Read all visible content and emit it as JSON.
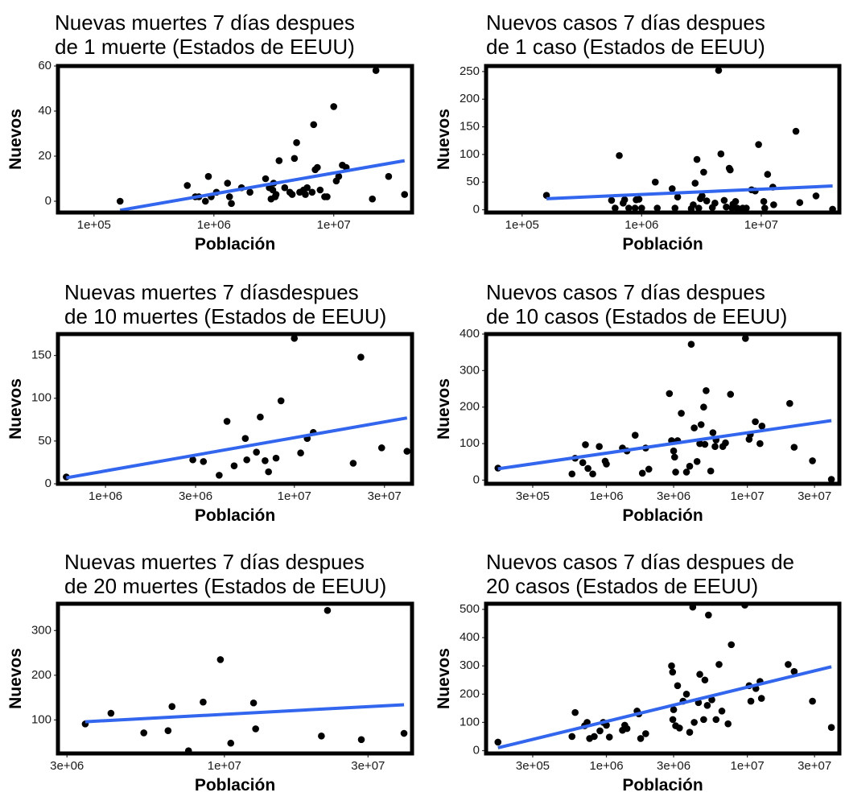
{
  "chart_data": [
    {
      "type": "scatter",
      "title": [
        "Nuevas muertes 7 días despues",
        "de 1 muerte (Estados de EEUU)"
      ],
      "xlabel": "Población",
      "ylabel": "Nuevos",
      "xscale": "log",
      "xlim": [
        50000,
        45000000
      ],
      "ylim": [
        -5,
        60
      ],
      "xticks": [
        {
          "value": 100000,
          "label": "1e+05"
        },
        {
          "value": 1000000,
          "label": "1e+06"
        },
        {
          "value": 10000000,
          "label": "1e+07"
        }
      ],
      "yticks": [
        {
          "value": 0,
          "label": "0"
        },
        {
          "value": 20,
          "label": "20"
        },
        {
          "value": 40,
          "label": "40"
        },
        {
          "value": 60,
          "label": "60"
        }
      ],
      "points": [
        [
          165000,
          0
        ],
        [
          600000,
          7
        ],
        [
          700000,
          2
        ],
        [
          750000,
          2
        ],
        [
          850000,
          0
        ],
        [
          900000,
          11
        ],
        [
          950000,
          2
        ],
        [
          1050000,
          4
        ],
        [
          1300000,
          8
        ],
        [
          1350000,
          2
        ],
        [
          1400000,
          -1
        ],
        [
          1700000,
          6
        ],
        [
          2000000,
          4
        ],
        [
          2700000,
          10
        ],
        [
          2900000,
          6
        ],
        [
          3000000,
          1
        ],
        [
          3100000,
          5
        ],
        [
          3150000,
          8
        ],
        [
          3250000,
          2
        ],
        [
          3300000,
          3
        ],
        [
          3500000,
          18
        ],
        [
          3900000,
          6
        ],
        [
          4300000,
          4
        ],
        [
          4500000,
          3
        ],
        [
          4700000,
          19
        ],
        [
          4900000,
          26
        ],
        [
          5200000,
          4
        ],
        [
          5600000,
          5
        ],
        [
          5800000,
          3
        ],
        [
          6000000,
          6
        ],
        [
          6600000,
          4
        ],
        [
          6800000,
          34
        ],
        [
          7000000,
          14
        ],
        [
          7300000,
          15
        ],
        [
          7700000,
          5
        ],
        [
          8400000,
          2
        ],
        [
          8800000,
          2
        ],
        [
          10000000,
          42
        ],
        [
          10500000,
          9
        ],
        [
          11000000,
          11
        ],
        [
          11800000,
          16
        ],
        [
          12700000,
          15
        ],
        [
          21000000,
          1
        ],
        [
          22500000,
          58
        ],
        [
          28700000,
          11
        ],
        [
          39000000,
          3
        ]
      ],
      "fit": [
        [
          165000,
          -4
        ],
        [
          39000000,
          18
        ]
      ],
      "line_color": "#3366ee"
    },
    {
      "type": "scatter",
      "title": [
        "Nuevos casos 7 días despues",
        "de 1 caso (Estados de EEUU)"
      ],
      "xlabel": "Población",
      "ylabel": "Nuevos",
      "xscale": "log",
      "xlim": [
        50000,
        45000000
      ],
      "ylim": [
        -5,
        260
      ],
      "xticks": [
        {
          "value": 100000,
          "label": "1e+05"
        },
        {
          "value": 1000000,
          "label": "1e+06"
        },
        {
          "value": 10000000,
          "label": "1e+07"
        }
      ],
      "yticks": [
        {
          "value": 0,
          "label": "0"
        },
        {
          "value": 50,
          "label": "50"
        },
        {
          "value": 100,
          "label": "100"
        },
        {
          "value": 150,
          "label": "150"
        },
        {
          "value": 200,
          "label": "200"
        },
        {
          "value": 250,
          "label": "250"
        }
      ],
      "points": [
        [
          160000,
          26
        ],
        [
          560000,
          17
        ],
        [
          600000,
          3
        ],
        [
          650000,
          98
        ],
        [
          700000,
          12
        ],
        [
          720000,
          18
        ],
        [
          780000,
          3
        ],
        [
          880000,
          3
        ],
        [
          900000,
          18
        ],
        [
          950000,
          19
        ],
        [
          1000000,
          3
        ],
        [
          1300000,
          50
        ],
        [
          1350000,
          3
        ],
        [
          1800000,
          38
        ],
        [
          1900000,
          3
        ],
        [
          2000000,
          23
        ],
        [
          2600000,
          2
        ],
        [
          2700000,
          9
        ],
        [
          2800000,
          48
        ],
        [
          2900000,
          91
        ],
        [
          3000000,
          3
        ],
        [
          3100000,
          20
        ],
        [
          3200000,
          25
        ],
        [
          3300000,
          68
        ],
        [
          3500000,
          16
        ],
        [
          3900000,
          4
        ],
        [
          4100000,
          12
        ],
        [
          4400000,
          252
        ],
        [
          4600000,
          101
        ],
        [
          4900000,
          17
        ],
        [
          5100000,
          5
        ],
        [
          5400000,
          75
        ],
        [
          5500000,
          72
        ],
        [
          5700000,
          3
        ],
        [
          5800000,
          10
        ],
        [
          6100000,
          15
        ],
        [
          6300000,
          3
        ],
        [
          6500000,
          1
        ],
        [
          6700000,
          0
        ],
        [
          7000000,
          3
        ],
        [
          7500000,
          3
        ],
        [
          8300000,
          36
        ],
        [
          8900000,
          34
        ],
        [
          9500000,
          118
        ],
        [
          10500000,
          15
        ],
        [
          10700000,
          3
        ],
        [
          11300000,
          64
        ],
        [
          12500000,
          41
        ],
        [
          12700000,
          9
        ],
        [
          19500000,
          142
        ],
        [
          21000000,
          13
        ],
        [
          28700000,
          25
        ],
        [
          39500000,
          1
        ]
      ],
      "fit": [
        [
          160000,
          20
        ],
        [
          39500000,
          43
        ]
      ],
      "line_color": "#3366ee"
    },
    {
      "type": "scatter",
      "title": [
        "Nuevas muertes 7 díasdespues",
        "de 10 muertes (Estados de EEUU)"
      ],
      "xlabel": "Población",
      "ylabel": "Nuevos",
      "xscale": "log",
      "xlim": [
        560000,
        42000000
      ],
      "ylim": [
        0,
        175
      ],
      "xticks": [
        {
          "value": 1000000,
          "label": "1e+06"
        },
        {
          "value": 3000000,
          "label": "3e+06"
        },
        {
          "value": 10000000,
          "label": "1e+07"
        },
        {
          "value": 30000000,
          "label": "3e+07"
        }
      ],
      "yticks": [
        {
          "value": 0,
          "label": "0"
        },
        {
          "value": 50,
          "label": "50"
        },
        {
          "value": 100,
          "label": "100"
        },
        {
          "value": 150,
          "label": "150"
        }
      ],
      "points": [
        [
          620000,
          8
        ],
        [
          2900000,
          28
        ],
        [
          3300000,
          26
        ],
        [
          4000000,
          10
        ],
        [
          4400000,
          73
        ],
        [
          4800000,
          21
        ],
        [
          5600000,
          28
        ],
        [
          5500000,
          53
        ],
        [
          6300000,
          37
        ],
        [
          6600000,
          78
        ],
        [
          7000000,
          27
        ],
        [
          7300000,
          14
        ],
        [
          8000000,
          30
        ],
        [
          8500000,
          97
        ],
        [
          10000000,
          170
        ],
        [
          10800000,
          36
        ],
        [
          11700000,
          53
        ],
        [
          12600000,
          60
        ],
        [
          20500000,
          24
        ],
        [
          22500000,
          148
        ],
        [
          29000000,
          42
        ],
        [
          39500000,
          38
        ]
      ],
      "fit": [
        [
          620000,
          7
        ],
        [
          39500000,
          77
        ]
      ],
      "line_color": "#3366ee"
    },
    {
      "type": "scatter",
      "title": [
        "Nuevos casos 7 días despues",
        "de 10 casos (Estados de EEUU)"
      ],
      "xlabel": "Población",
      "ylabel": "Nuevos",
      "xscale": "log",
      "xlim": [
        140000,
        45000000
      ],
      "ylim": [
        -10,
        400
      ],
      "xticks": [
        {
          "value": 300000,
          "label": "3e+05"
        },
        {
          "value": 1000000,
          "label": "1e+06"
        },
        {
          "value": 3000000,
          "label": "3e+06"
        },
        {
          "value": 10000000,
          "label": "1e+07"
        },
        {
          "value": 30000000,
          "label": "3e+07"
        }
      ],
      "yticks": [
        {
          "value": 0,
          "label": "0"
        },
        {
          "value": 100,
          "label": "100"
        },
        {
          "value": 200,
          "label": "200"
        },
        {
          "value": 300,
          "label": "300"
        },
        {
          "value": 400,
          "label": "400"
        }
      ],
      "points": [
        [
          170000,
          33
        ],
        [
          570000,
          17
        ],
        [
          600000,
          60
        ],
        [
          680000,
          48
        ],
        [
          710000,
          97
        ],
        [
          740000,
          32
        ],
        [
          800000,
          17
        ],
        [
          890000,
          92
        ],
        [
          980000,
          52
        ],
        [
          1000000,
          44
        ],
        [
          1300000,
          88
        ],
        [
          1400000,
          80
        ],
        [
          1600000,
          123
        ],
        [
          1800000,
          19
        ],
        [
          1900000,
          88
        ],
        [
          2000000,
          30
        ],
        [
          2800000,
          237
        ],
        [
          2900000,
          108
        ],
        [
          3000000,
          80
        ],
        [
          3050000,
          63
        ],
        [
          3100000,
          22
        ],
        [
          3200000,
          108
        ],
        [
          3400000,
          183
        ],
        [
          3700000,
          22
        ],
        [
          3900000,
          38
        ],
        [
          4000000,
          372
        ],
        [
          4200000,
          143
        ],
        [
          4400000,
          51
        ],
        [
          4600000,
          100
        ],
        [
          4700000,
          152
        ],
        [
          4900000,
          200
        ],
        [
          5000000,
          98
        ],
        [
          5100000,
          245
        ],
        [
          5500000,
          25
        ],
        [
          5700000,
          130
        ],
        [
          5900000,
          92
        ],
        [
          6000000,
          110
        ],
        [
          6700000,
          92
        ],
        [
          7000000,
          102
        ],
        [
          7600000,
          235
        ],
        [
          9700000,
          388
        ],
        [
          10300000,
          112
        ],
        [
          10500000,
          125
        ],
        [
          11400000,
          160
        ],
        [
          12300000,
          100
        ],
        [
          12700000,
          148
        ],
        [
          20000000,
          210
        ],
        [
          21500000,
          90
        ],
        [
          29000000,
          53
        ],
        [
          39500000,
          2
        ]
      ],
      "fit": [
        [
          170000,
          31
        ],
        [
          39500000,
          163
        ]
      ],
      "line_color": "#3366ee"
    },
    {
      "type": "scatter",
      "title": [
        "Nuevas muertes 7 días despues",
        "de 20 muertes (Estados de EEUU)"
      ],
      "xlabel": "Población",
      "ylabel": "Nuevos",
      "xscale": "log",
      "xlim": [
        2800000,
        42000000
      ],
      "ylim": [
        25,
        360
      ],
      "xticks": [
        {
          "value": 3000000,
          "label": "3e+06"
        },
        {
          "value": 10000000,
          "label": "1e+07"
        },
        {
          "value": 30000000,
          "label": "3e+07"
        }
      ],
      "yticks": [
        {
          "value": 100,
          "label": "100"
        },
        {
          "value": 200,
          "label": "200"
        },
        {
          "value": 300,
          "label": "300"
        }
      ],
      "points": [
        [
          3450000,
          91
        ],
        [
          4200000,
          115
        ],
        [
          5400000,
          71
        ],
        [
          6500000,
          76
        ],
        [
          6700000,
          130
        ],
        [
          7600000,
          31
        ],
        [
          8500000,
          140
        ],
        [
          9700000,
          235
        ],
        [
          10500000,
          48
        ],
        [
          12500000,
          138
        ],
        [
          12700000,
          80
        ],
        [
          21000000,
          64
        ],
        [
          22000000,
          345
        ],
        [
          28500000,
          56
        ],
        [
          39500000,
          70
        ]
      ],
      "fit": [
        [
          3450000,
          96
        ],
        [
          39500000,
          134
        ]
      ],
      "line_color": "#3366ee"
    },
    {
      "type": "scatter",
      "title": [
        "Nuevos casos 7 días despues de",
        "20 casos (Estados de EEUU)"
      ],
      "xlabel": "Población",
      "ylabel": "Nuevos",
      "xscale": "log",
      "xlim": [
        140000,
        45000000
      ],
      "ylim": [
        -10,
        520
      ],
      "xticks": [
        {
          "value": 300000,
          "label": "3e+05"
        },
        {
          "value": 1000000,
          "label": "1e+06"
        },
        {
          "value": 3000000,
          "label": "3e+06"
        },
        {
          "value": 10000000,
          "label": "1e+07"
        },
        {
          "value": 30000000,
          "label": "3e+07"
        }
      ],
      "yticks": [
        {
          "value": 0,
          "label": "0"
        },
        {
          "value": 100,
          "label": "100"
        },
        {
          "value": 200,
          "label": "200"
        },
        {
          "value": 300,
          "label": "300"
        },
        {
          "value": 400,
          "label": "400"
        },
        {
          "value": 500,
          "label": "500"
        }
      ],
      "points": [
        [
          170000,
          30
        ],
        [
          570000,
          50
        ],
        [
          600000,
          135
        ],
        [
          700000,
          88
        ],
        [
          730000,
          100
        ],
        [
          760000,
          43
        ],
        [
          820000,
          50
        ],
        [
          900000,
          70
        ],
        [
          950000,
          100
        ],
        [
          1000000,
          90
        ],
        [
          1050000,
          48
        ],
        [
          1300000,
          72
        ],
        [
          1350000,
          90
        ],
        [
          1400000,
          78
        ],
        [
          1650000,
          140
        ],
        [
          1700000,
          130
        ],
        [
          1750000,
          43
        ],
        [
          1900000,
          60
        ],
        [
          2900000,
          300
        ],
        [
          2950000,
          278
        ],
        [
          2960000,
          110
        ],
        [
          3000000,
          145
        ],
        [
          3100000,
          88
        ],
        [
          3200000,
          230
        ],
        [
          3300000,
          80
        ],
        [
          3500000,
          175
        ],
        [
          3700000,
          200
        ],
        [
          3900000,
          65
        ],
        [
          4100000,
          508
        ],
        [
          4200000,
          100
        ],
        [
          4500000,
          170
        ],
        [
          4600000,
          270
        ],
        [
          4900000,
          110
        ],
        [
          5000000,
          250
        ],
        [
          5200000,
          160
        ],
        [
          5300000,
          480
        ],
        [
          5600000,
          180
        ],
        [
          6000000,
          110
        ],
        [
          6300000,
          305
        ],
        [
          6600000,
          140
        ],
        [
          7300000,
          95
        ],
        [
          7700000,
          375
        ],
        [
          9600000,
          515
        ],
        [
          10300000,
          230
        ],
        [
          10600000,
          175
        ],
        [
          11500000,
          220
        ],
        [
          12300000,
          245
        ],
        [
          12600000,
          185
        ],
        [
          19500000,
          305
        ],
        [
          21500000,
          280
        ],
        [
          29000000,
          175
        ],
        [
          39500000,
          82
        ]
      ],
      "fit": [
        [
          170000,
          10
        ],
        [
          39500000,
          297
        ]
      ],
      "line_color": "#3366ee"
    }
  ]
}
